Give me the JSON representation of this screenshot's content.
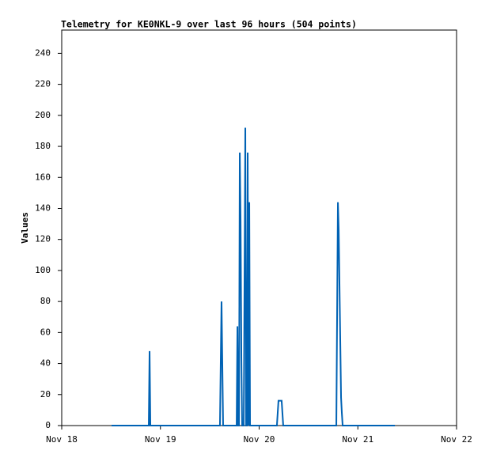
{
  "chart_data": {
    "type": "line",
    "title": "Telemetry for KE0NKL-9 over last 96 hours (504 points)",
    "y_label": "Values",
    "xlim": [
      18,
      22
    ],
    "xticks": [
      {
        "value": 18,
        "label": "Nov 18"
      },
      {
        "value": 19,
        "label": "Nov 19"
      },
      {
        "value": 20,
        "label": "Nov 20"
      },
      {
        "value": 21,
        "label": "Nov 21"
      },
      {
        "value": 22,
        "label": "Nov 22"
      }
    ],
    "ylim": [
      0,
      255
    ],
    "yticks": [
      0,
      20,
      40,
      60,
      80,
      100,
      120,
      140,
      160,
      180,
      200,
      220,
      240
    ],
    "series": [
      {
        "color": "#0062b4",
        "x": [
          18.505,
          18.882,
          18.89,
          18.898,
          19.603,
          19.611,
          19.619,
          19.627,
          19.635,
          19.772,
          19.78,
          19.788,
          19.796,
          19.804,
          19.812,
          19.82,
          19.828,
          19.844,
          19.852,
          19.86,
          19.868,
          19.876,
          19.884,
          19.892,
          19.9,
          19.908,
          20.18,
          20.188,
          20.196,
          20.228,
          20.236,
          20.244,
          20.782,
          20.79,
          20.798,
          20.806,
          20.814,
          20.822,
          20.83,
          20.838,
          20.846,
          21.375
        ],
        "values": [
          0,
          0,
          48,
          0,
          0,
          40,
          80,
          40,
          0,
          0,
          64,
          0,
          0,
          176,
          132,
          44,
          0,
          0,
          96,
          192,
          0,
          0,
          176,
          0,
          144,
          0,
          0,
          8,
          16,
          16,
          8,
          0,
          0,
          72,
          144,
          126,
          90,
          54,
          18,
          8,
          0,
          0
        ]
      }
    ]
  }
}
